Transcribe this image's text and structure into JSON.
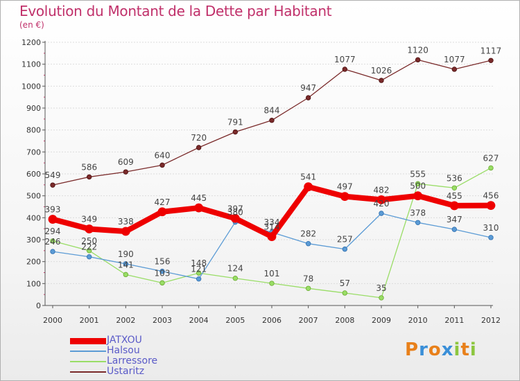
{
  "header": {
    "title": "Evolution du Montant de la Dette par Habitant",
    "subtitle": "(en €)"
  },
  "chart_data": {
    "type": "line",
    "title": "Evolution du Montant de la Dette par Habitant",
    "subtitle": "(en €)",
    "xlabel": "",
    "ylabel": "",
    "x": [
      2000,
      2001,
      2002,
      2003,
      2004,
      2005,
      2006,
      2007,
      2008,
      2009,
      2010,
      2011,
      2012
    ],
    "ylim": [
      0,
      1200
    ],
    "yticks": [
      0,
      100,
      200,
      300,
      400,
      500,
      600,
      700,
      800,
      900,
      1000,
      1100,
      1200
    ],
    "grid": "horizontal",
    "legend": "bottom-left",
    "series": [
      {
        "name": "JATXOU",
        "color": "#ee0000",
        "values": [
          393,
          349,
          338,
          427,
          445,
          397,
          314,
          541,
          497,
          482,
          500,
          455,
          456
        ],
        "labels": [
          "393",
          "349",
          "338",
          "427",
          "445",
          "397",
          "314",
          "541",
          "497",
          "482",
          "500",
          "455",
          "456"
        ]
      },
      {
        "name": "Halsou",
        "color": "#5b9bd5",
        "values": [
          246,
          222,
          190,
          156,
          121,
          380,
          334,
          282,
          257,
          420,
          378,
          347,
          310
        ],
        "labels": [
          "246",
          "222",
          "190",
          "156",
          "121",
          "380",
          "334",
          "282",
          "257",
          "420",
          "378",
          "347",
          "310"
        ]
      },
      {
        "name": "Larressore",
        "color": "#99dd66",
        "values": [
          294,
          250,
          141,
          103,
          148,
          124,
          101,
          78,
          57,
          35,
          555,
          536,
          627
        ],
        "labels": [
          "294",
          "250",
          "141",
          "103",
          "148",
          "124",
          "101",
          "78",
          "57",
          "35",
          "555",
          "536",
          "627"
        ]
      },
      {
        "name": "Ustaritz",
        "color": "#7a2a2a",
        "values": [
          549,
          586,
          609,
          640,
          720,
          791,
          844,
          947,
          1077,
          1026,
          1120,
          1077,
          1117
        ],
        "labels": [
          "549",
          "586",
          "609",
          "640",
          "720",
          "791",
          "844",
          "947",
          "1077",
          "1026",
          "1120",
          "1077",
          "1117"
        ]
      }
    ]
  },
  "legend": {
    "items": [
      {
        "label": "JATXOU",
        "color": "#ee0000"
      },
      {
        "label": "Halsou",
        "color": "#5b9bd5"
      },
      {
        "label": "Larressore",
        "color": "#99dd66"
      },
      {
        "label": "Ustaritz",
        "color": "#7a2a2a"
      }
    ]
  },
  "logo": {
    "text": "Proxiti",
    "letters": [
      {
        "char": "P",
        "color": "#e8801a"
      },
      {
        "char": "r",
        "color": "#3a8fd8"
      },
      {
        "char": "o",
        "color": "#e8801a"
      },
      {
        "char": "x",
        "color": "#3a8fd8"
      },
      {
        "char": "i",
        "color": "#8dc63f"
      },
      {
        "char": "t",
        "color": "#e8801a"
      },
      {
        "char": "i",
        "color": "#8dc63f"
      }
    ]
  }
}
